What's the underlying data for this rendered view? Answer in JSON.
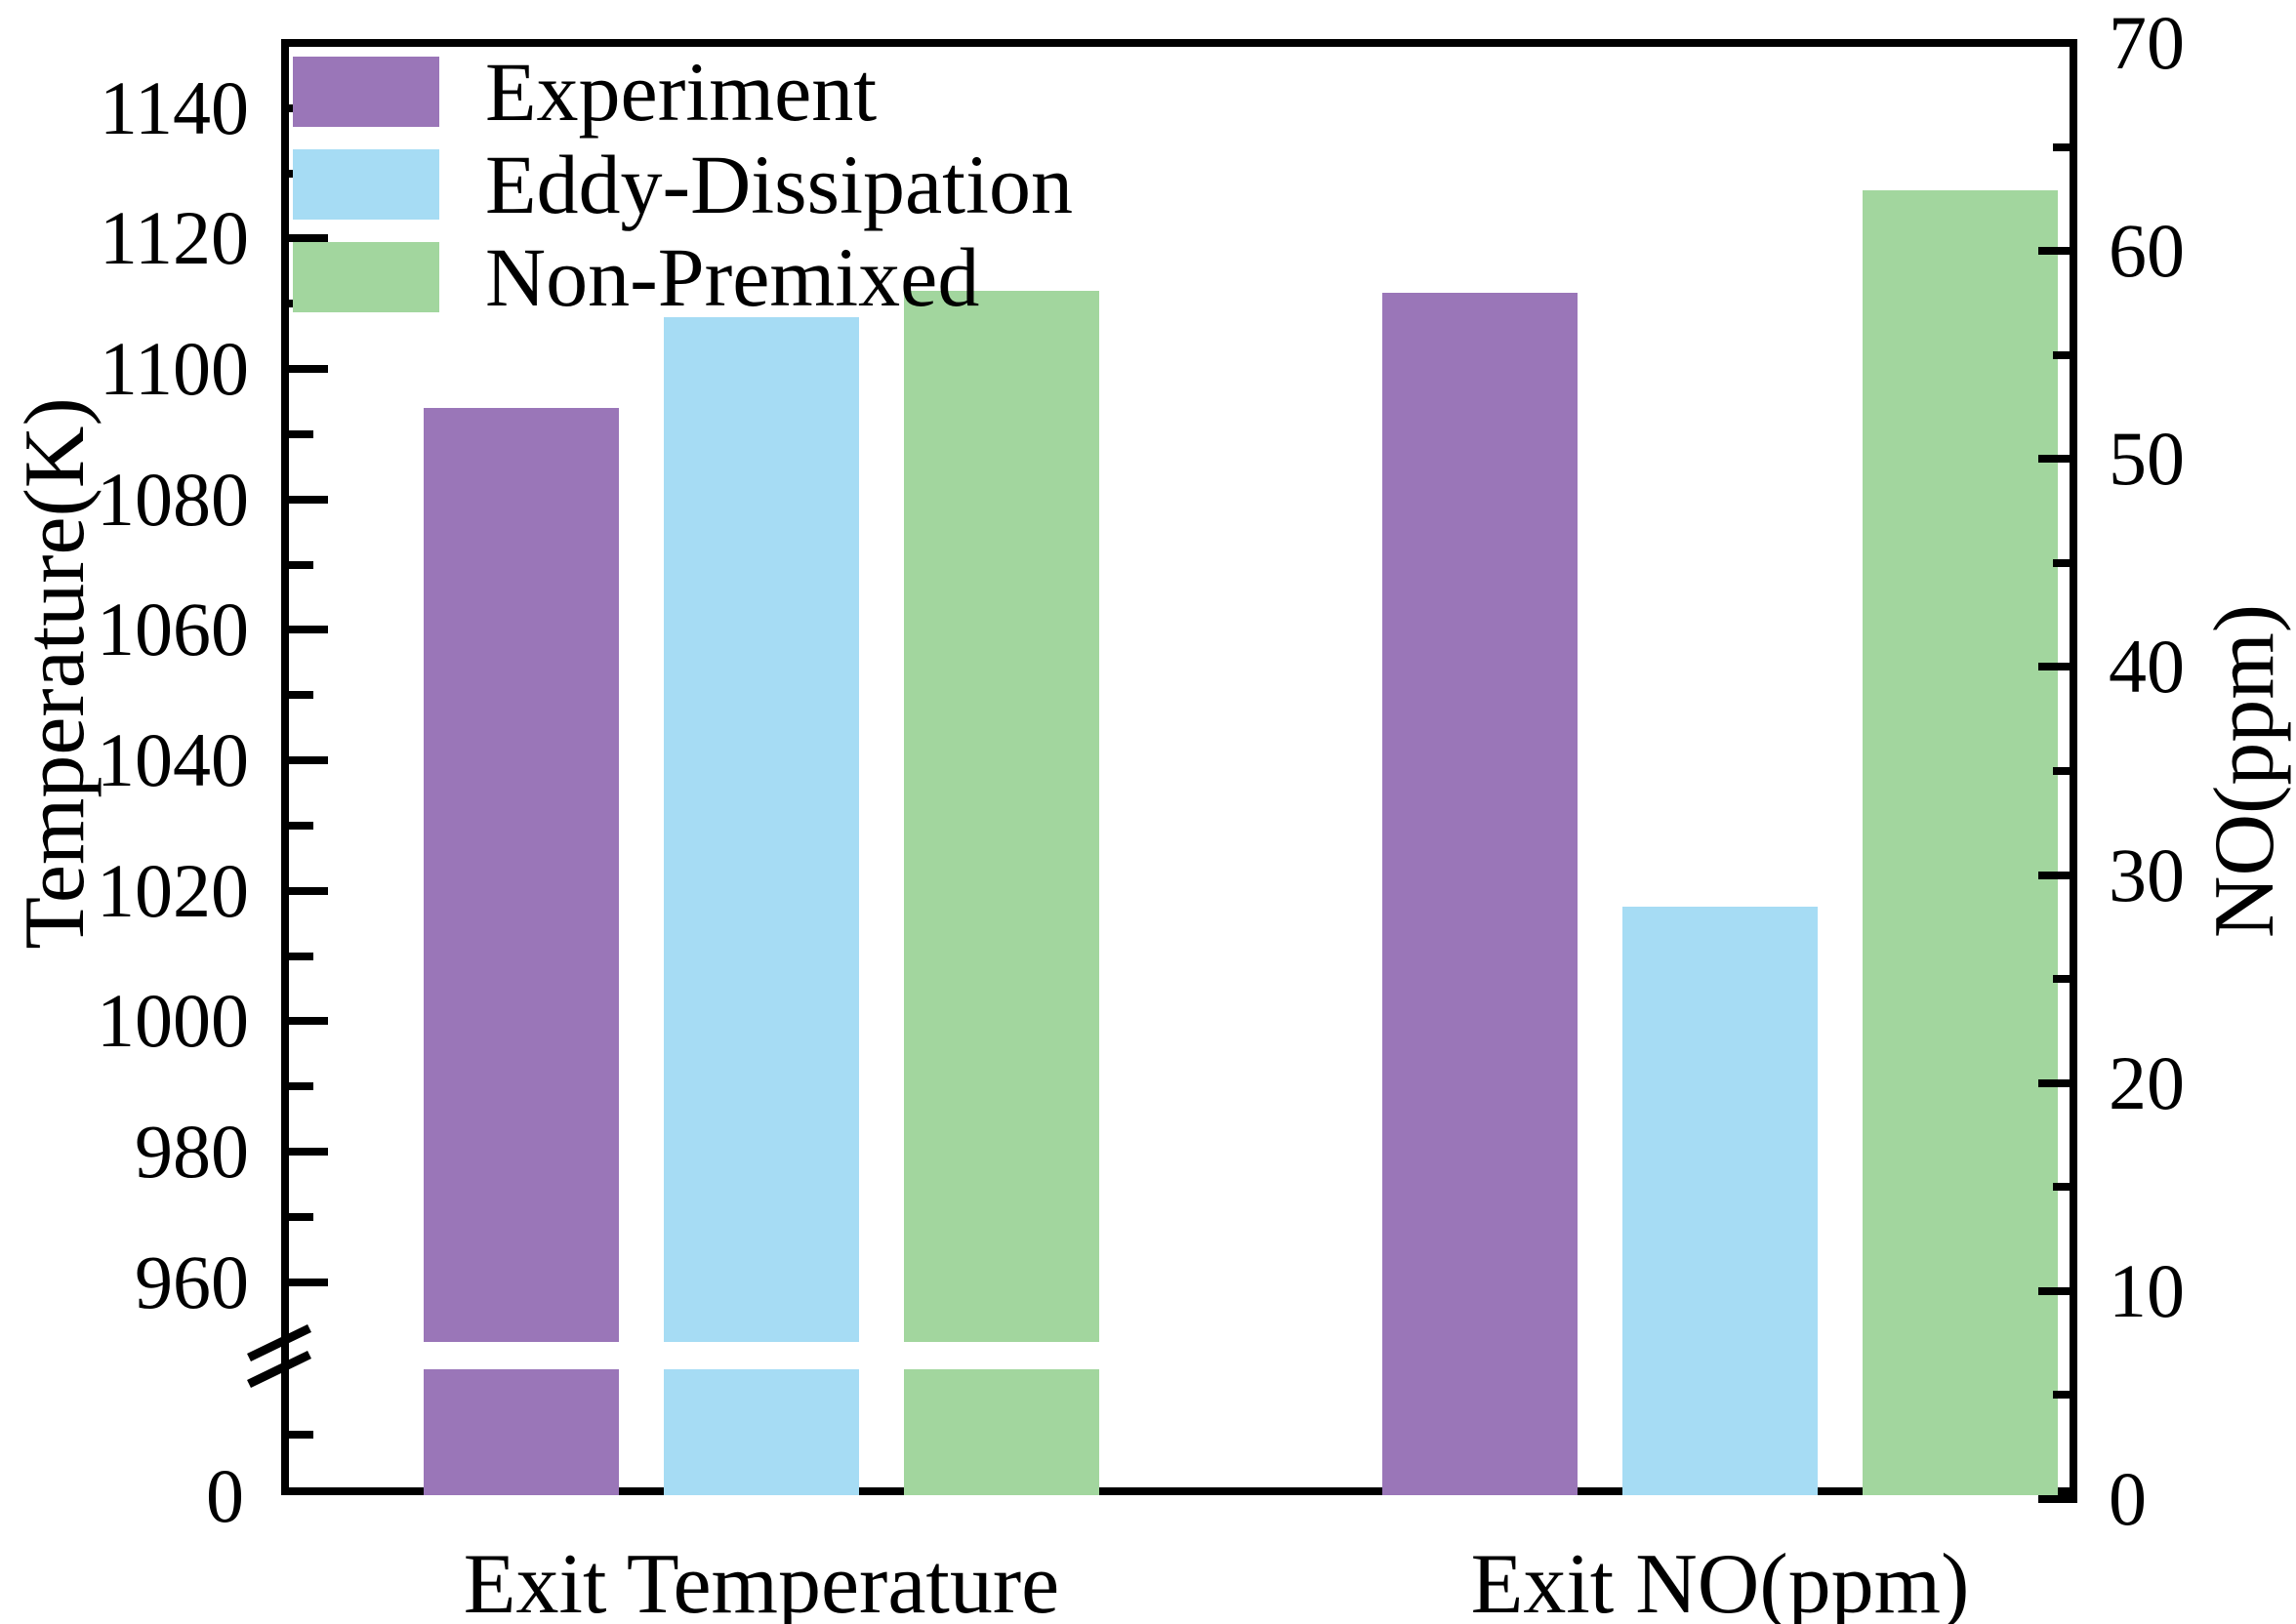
{
  "chart_data": {
    "type": "bar",
    "title": "",
    "categories": [
      "Exit Temperature",
      "Exit NO(ppm)"
    ],
    "series": [
      {
        "name": "Experiment",
        "color": "#9a76b8",
        "values": [
          1094,
          58
        ]
      },
      {
        "name": "Eddy-Dissipation",
        "color": "#a6dcf4",
        "values": [
          1108,
          28.5
        ]
      },
      {
        "name": "Non-Premixed",
        "color": "#a2d69e",
        "values": [
          1112,
          62.9
        ]
      }
    ],
    "left_axis": {
      "label": "Temperature(K)",
      "applies_to": "Exit Temperature",
      "units": "K",
      "range_shown": [
        950,
        1150
      ],
      "tick_step": 20,
      "major_ticks": [
        1140,
        1120,
        1100,
        1080,
        1060,
        1040,
        1020,
        1000,
        980,
        960
      ],
      "minor_ticks": [
        1130,
        1110,
        1090,
        1070,
        1050,
        1030,
        1010,
        990,
        970
      ],
      "broken_axis": true,
      "zero_label": "0"
    },
    "right_axis": {
      "label": "NO(ppm)",
      "applies_to": "Exit NO(ppm)",
      "units": "ppm",
      "range": [
        0,
        70
      ],
      "tick_step": 10,
      "major_ticks": [
        70,
        60,
        50,
        40,
        30,
        20,
        10,
        0
      ],
      "minor_ticks": [
        65,
        55,
        45,
        35,
        25,
        15,
        5
      ]
    },
    "legend_position": "top-left",
    "grid": false,
    "background": "#ffffff",
    "line_color": "#000000"
  }
}
